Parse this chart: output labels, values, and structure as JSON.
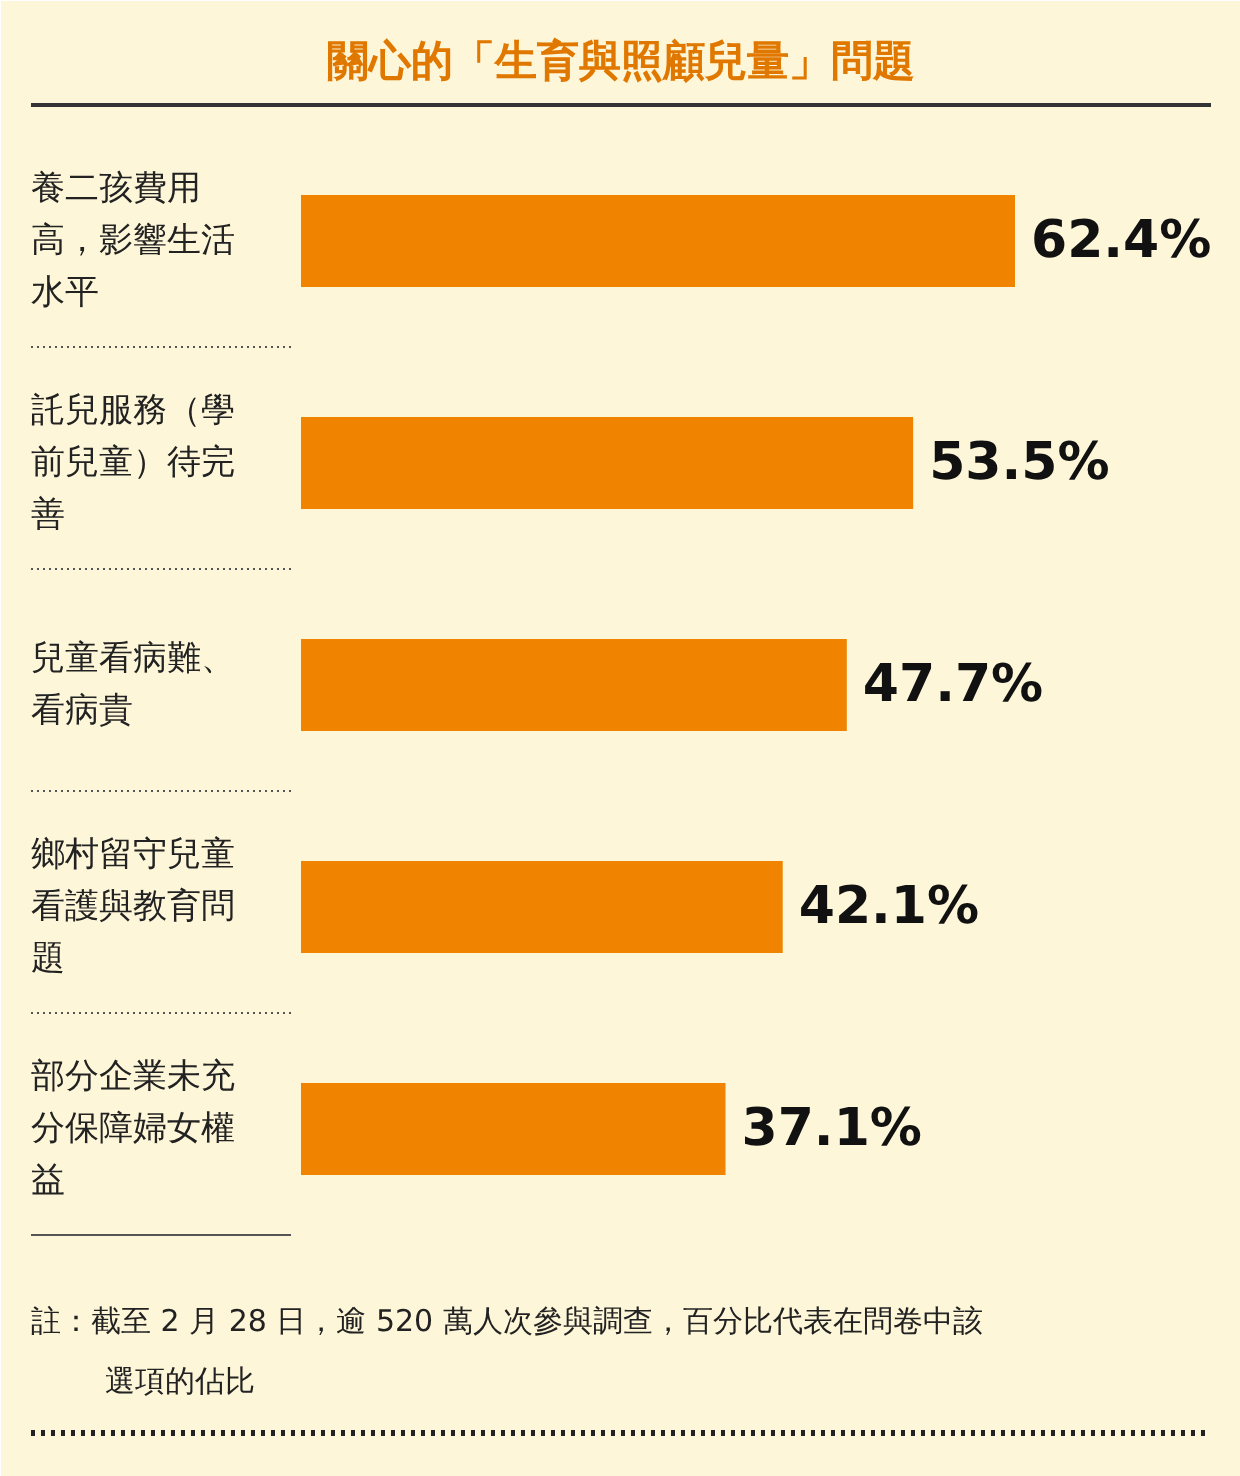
{
  "chart_data": {
    "type": "bar",
    "orientation": "horizontal",
    "title": "關心的「生育與照顧兒量」問題",
    "categories": [
      "養二孩費用高，影響生活水平",
      "託兒服務（學前兒童）待完善",
      "兒童看病難、看病貴",
      "鄉村留守兒童看護與教育問題",
      "部分企業未充分保障婦女權益"
    ],
    "values": [
      62.4,
      53.5,
      47.7,
      42.1,
      37.1
    ],
    "value_labels": [
      "62.4%",
      "53.5%",
      "47.7%",
      "42.1%",
      "37.1%"
    ],
    "color": "#f08300",
    "annotations": [
      "註：截至 2 月 28 日，逾 520 萬人次參與調查，百分比代表在問卷中該選項的佔比"
    ]
  }
}
